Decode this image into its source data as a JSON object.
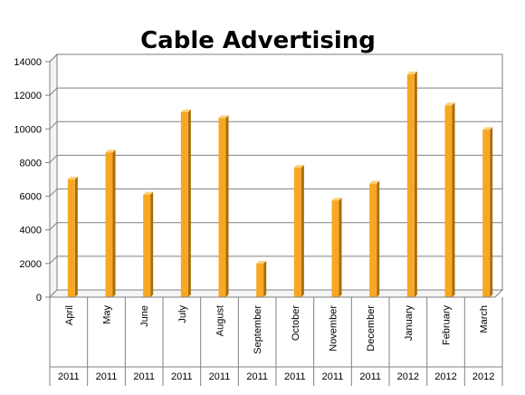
{
  "chart_data": {
    "type": "bar",
    "title": "Cable Advertising",
    "xlabel": "",
    "ylabel": "",
    "categories": [
      "April",
      "May",
      "June",
      "July",
      "August",
      "September",
      "October",
      "November",
      "December",
      "January",
      "February",
      "March"
    ],
    "years": [
      "2011",
      "2011",
      "2011",
      "2011",
      "2011",
      "2011",
      "2011",
      "2011",
      "2011",
      "2012",
      "2012",
      "2012"
    ],
    "values": [
      7000,
      8600,
      6100,
      11000,
      10650,
      2000,
      7700,
      5750,
      6750,
      13250,
      11400,
      9950
    ],
    "ylim": [
      0,
      14000
    ],
    "yticks": [
      "0",
      "2000",
      "4000",
      "6000",
      "8000",
      "10000",
      "12000",
      "14000"
    ],
    "grid": true,
    "legend": "none",
    "colors": {
      "bar_front": "#f7a823",
      "bar_side": "#a86d0a",
      "bar_top": "#fcd27e",
      "grid": "#808080",
      "wall": "#f4f4f4"
    }
  }
}
